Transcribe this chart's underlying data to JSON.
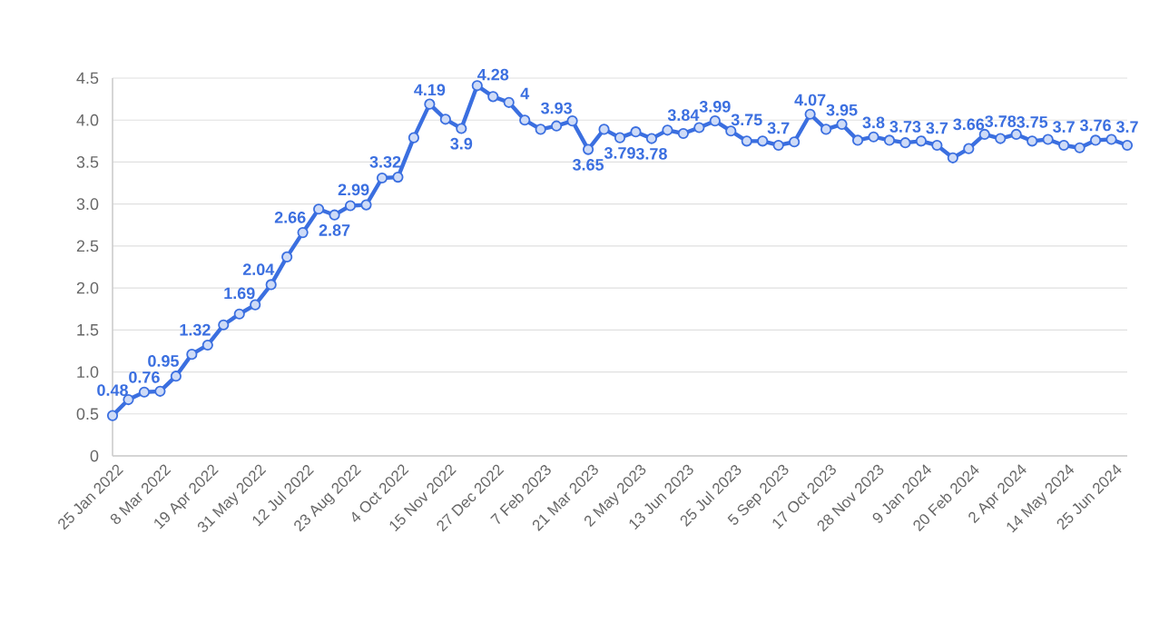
{
  "chart_data": {
    "type": "line",
    "categories": [
      "25 Jan 2022",
      null,
      null,
      "8 Mar 2022",
      null,
      null,
      "19 Apr 2022",
      null,
      null,
      "31 May 2022",
      null,
      null,
      "12 Jul 2022",
      null,
      null,
      "23 Aug 2022",
      null,
      null,
      "4 Oct 2022",
      null,
      null,
      "15 Nov 2022",
      null,
      null,
      "27 Dec 2022",
      null,
      null,
      "7 Feb 2023",
      null,
      null,
      "21 Mar 2023",
      null,
      null,
      "2 May 2023",
      null,
      null,
      "13 Jun 2023",
      null,
      null,
      "25 Jul 2023",
      null,
      null,
      "5 Sep 2023",
      null,
      null,
      "17 Oct 2023",
      null,
      null,
      "28 Nov 2023",
      null,
      null,
      "9 Jan 2024",
      null,
      null,
      "20 Feb 2024",
      null,
      null,
      "2 Apr 2024",
      null,
      null,
      "14 May 2024",
      null,
      null,
      "25 Jun 2024",
      null
    ],
    "values": [
      0.48,
      0.67,
      0.76,
      0.77,
      0.95,
      1.21,
      1.32,
      1.56,
      1.69,
      1.8,
      2.04,
      2.37,
      2.66,
      2.94,
      2.87,
      2.98,
      2.99,
      3.31,
      3.32,
      3.79,
      4.19,
      4.01,
      3.9,
      4.41,
      4.28,
      4.21,
      4.0,
      3.89,
      3.93,
      3.99,
      3.65,
      3.89,
      3.79,
      3.86,
      3.78,
      3.88,
      3.84,
      3.91,
      3.99,
      3.87,
      3.75,
      3.75,
      3.7,
      3.74,
      4.07,
      3.89,
      3.95,
      3.76,
      3.8,
      3.76,
      3.73,
      3.75,
      3.7,
      3.55,
      3.66,
      3.83,
      3.78,
      3.83,
      3.75,
      3.77,
      3.7,
      3.67,
      3.76,
      3.77,
      3.7
    ],
    "value_labels": [
      "0.48",
      null,
      "0.76",
      null,
      "0.95",
      null,
      "1.32",
      null,
      "1.69",
      null,
      "2.04",
      null,
      "2.66",
      null,
      "2.87",
      null,
      "2.99",
      null,
      "3.32",
      null,
      "4.19",
      null,
      "3.9",
      null,
      "4.28",
      null,
      "4",
      null,
      "3.93",
      null,
      "3.65",
      null,
      "3.79",
      null,
      "3.78",
      null,
      "3.84",
      null,
      "3.99",
      null,
      "3.75",
      null,
      "3.7",
      null,
      "4.07",
      null,
      "3.95",
      null,
      "3.8",
      null,
      "3.73",
      null,
      "3.7",
      null,
      "3.66",
      null,
      "3.78",
      null,
      "3.75",
      null,
      "3.7",
      null,
      "3.76",
      null,
      "3.7"
    ],
    "color": "#3b6fe0",
    "ylim": [
      0,
      4.5
    ],
    "yticks": [
      0,
      0.5,
      {
        "value": 1,
        "label": "1.0"
      },
      1.5,
      {
        "value": 2,
        "label": "2.0"
      },
      2.5,
      {
        "value": 3,
        "label": "3.0"
      },
      3.5,
      {
        "value": 4,
        "label": "4.0"
      },
      4.5
    ],
    "grid": "y",
    "marker": "circle",
    "line_style": "solid"
  }
}
